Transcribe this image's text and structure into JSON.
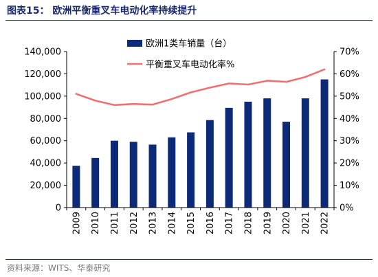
{
  "figure": {
    "title": "图表15：  欧洲平衡重叉车电动化率持续提升",
    "source": "资料来源：WITS、华泰研究"
  },
  "colors": {
    "bar": "#0d2a78",
    "line": "#f07072",
    "header": "#1b2a6b",
    "axis": "#000000"
  },
  "chart_data": {
    "type": "bar",
    "title": "",
    "categories": [
      "2009",
      "2010",
      "2011",
      "2012",
      "2013",
      "2014",
      "2015",
      "2016",
      "2017",
      "2018",
      "2019",
      "2020",
      "2021",
      "2022"
    ],
    "series": [
      {
        "name": "欧洲1类车销量（台）",
        "type": "bar",
        "axis": "left",
        "values": [
          37500,
          44500,
          60000,
          59000,
          56500,
          63000,
          67500,
          78500,
          89500,
          95000,
          98000,
          77000,
          98000,
          115000
        ]
      },
      {
        "name": "平衡重叉车电动化率%",
        "type": "line",
        "axis": "right",
        "values": [
          51,
          48,
          46,
          46.5,
          46.2,
          48.7,
          51.7,
          53.8,
          55.7,
          55.2,
          56.9,
          56.4,
          58.6,
          62
        ]
      }
    ],
    "y_left": {
      "min": 0,
      "max": 140000,
      "step": 20000,
      "tick_labels": [
        "0",
        "20,000",
        "40,000",
        "60,000",
        "80,000",
        "100,000",
        "120,000",
        "140,000"
      ]
    },
    "y_right": {
      "min": 0,
      "max": 70,
      "step": 10,
      "tick_labels": [
        "0%",
        "10%",
        "20%",
        "30%",
        "40%",
        "50%",
        "60%",
        "70%"
      ]
    },
    "xlabel": "",
    "ylabel": "",
    "grid": false,
    "legend_position": "top-center"
  }
}
